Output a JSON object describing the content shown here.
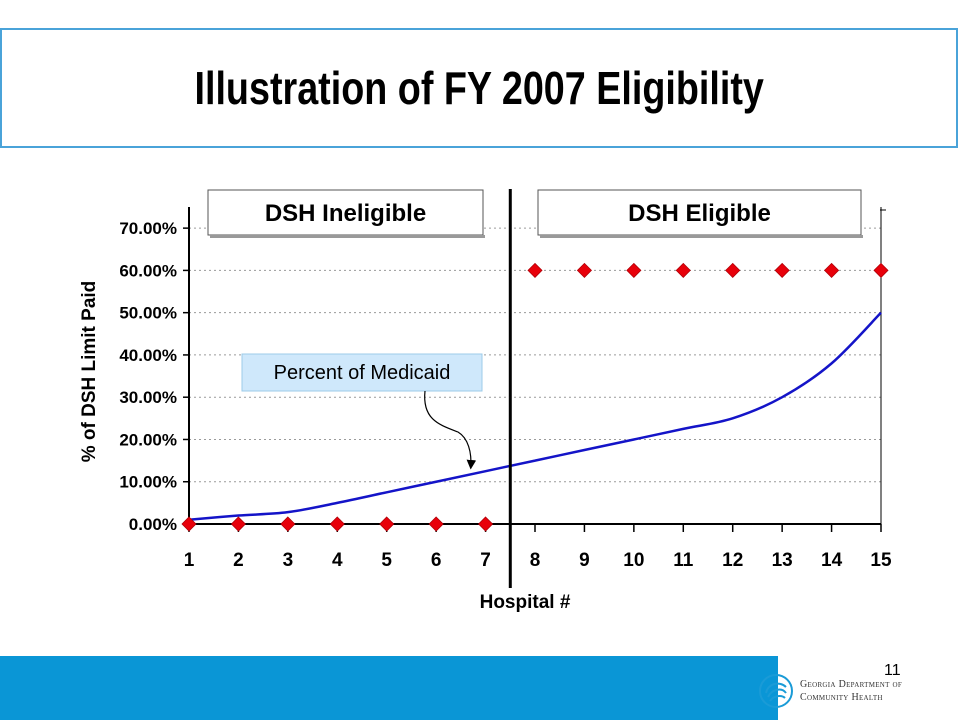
{
  "slide": {
    "title": "Illustration of FY 2007 Eligibility",
    "page_number": "11",
    "logo": {
      "line1": "Georgia Department of",
      "line2": "Community Health",
      "icon": "gdch-swirl-logo-icon"
    }
  },
  "colors": {
    "title_border": "#4aa3d9",
    "footer_bar": "#0a96d6",
    "line": "#1414c8",
    "marker": "#e8000a",
    "callout_fill": "#cfe8fb"
  },
  "chart_data": {
    "type": "line",
    "xlabel": "Hospital #",
    "ylabel": "% of DSH Limit Paid",
    "ylim": [
      0,
      0.75
    ],
    "yticks": [
      0,
      0.1,
      0.2,
      0.3,
      0.4,
      0.5,
      0.6,
      0.7
    ],
    "ytick_labels": [
      "0.00%",
      "10.00%",
      "20.00%",
      "30.00%",
      "40.00%",
      "50.00%",
      "60.00%",
      "70.00%"
    ],
    "x": [
      1,
      2,
      3,
      4,
      5,
      6,
      7,
      8,
      9,
      10,
      11,
      12,
      13,
      14,
      15
    ],
    "xtick_labels": [
      "1",
      "2",
      "3",
      "4",
      "5",
      "6",
      "7",
      "8",
      "9",
      "10",
      "11",
      "12",
      "13",
      "14",
      "15"
    ],
    "grid": true,
    "series": [
      {
        "kind": "line",
        "values": [
          0.01,
          0.02,
          0.028,
          0.05,
          0.075,
          0.1,
          0.125,
          0.15,
          0.175,
          0.2,
          0.225,
          0.25,
          0.3,
          0.38,
          0.5
        ]
      },
      {
        "kind": "markers",
        "marker": "diamond",
        "values": [
          0,
          0,
          0,
          0,
          0,
          0,
          0,
          0.6,
          0.6,
          0.6,
          0.6,
          0.6,
          0.6,
          0.6,
          0.6
        ]
      }
    ],
    "divider_after_x": 7.5,
    "region_labels": {
      "ineligible": "DSH Ineligible",
      "eligible": "DSH Eligible"
    },
    "annotation": {
      "text": "Percent of Medicaid",
      "points_to_x": 6.7
    }
  }
}
